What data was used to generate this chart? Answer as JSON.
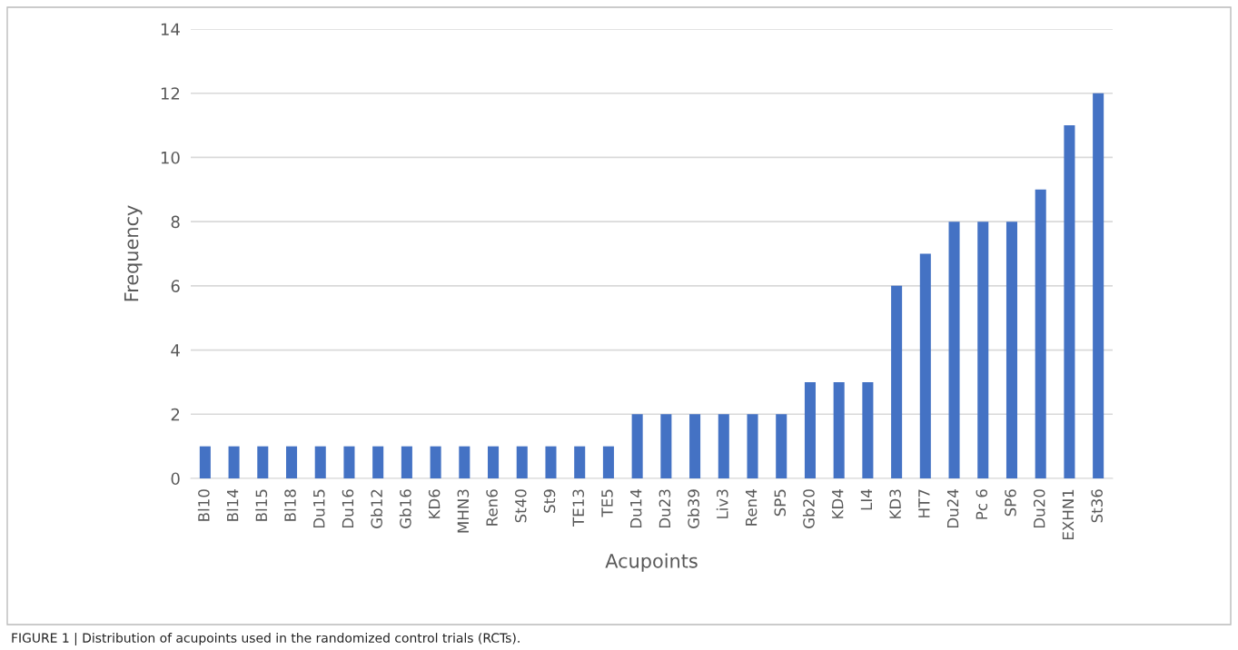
{
  "chart_data": {
    "type": "bar",
    "xlabel": "Acupoints",
    "ylabel": "Frequency",
    "categories": [
      "Bl10",
      "Bl14",
      "Bl15",
      "Bl18",
      "Du15",
      "Du16",
      "Gb12",
      "Gb16",
      "KD6",
      "MHN3",
      "Ren6",
      "St40",
      "St9",
      "TE13",
      "TE5",
      "Du14",
      "Du23",
      "Gb39",
      "Liv3",
      "Ren4",
      "SP5",
      "Gb20",
      "KD4",
      "LI4",
      "KD3",
      "HT7",
      "Du24",
      "Pc 6",
      "SP6",
      "Du20",
      "EXHN1",
      "St36"
    ],
    "values": [
      1,
      1,
      1,
      1,
      1,
      1,
      1,
      1,
      1,
      1,
      1,
      1,
      1,
      1,
      1,
      2,
      2,
      2,
      2,
      2,
      2,
      3,
      3,
      3,
      6,
      7,
      8,
      8,
      8,
      9,
      11,
      12
    ],
    "color": "#4472c4",
    "ylim": [
      0,
      14
    ],
    "yticks": [
      0,
      2,
      4,
      6,
      8,
      10,
      12,
      14
    ],
    "grid": "y",
    "annotations": [
      "FIGURE 1 | Distribution of acupoints used in the randomized control trials (RCTs)."
    ]
  }
}
